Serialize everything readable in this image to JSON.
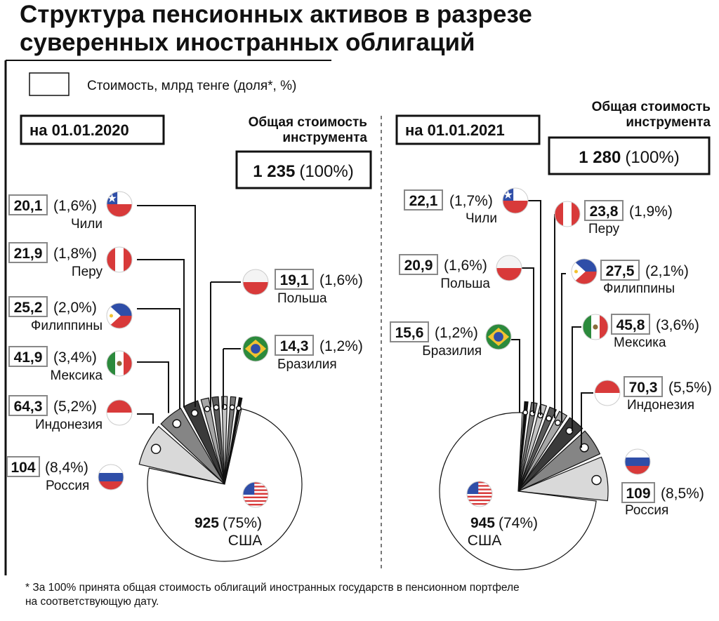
{
  "title_line1": "Структура пенсионных активов в разрезе",
  "title_line2": "суверенных иностранных облигаций",
  "legend": "Стоимость, млрд тенге (доля*, %)",
  "total_label_line1": "Общая стоимость",
  "total_label_line2": "инструмента",
  "footnote_line1": "* За 100% принята общая стоимость облигаций иностранных государств в пенсионном портфеле",
  "footnote_line2": "на соответствующую дату.",
  "colors": {
    "usa": "#ffffff",
    "russia": "#d9d9d9",
    "indonesia": "#858585",
    "mexico": "#3a3a3a",
    "philippines": "#a6a6a6",
    "peru": "#5a5a5a",
    "chile": "#c4c4c4",
    "poland": "#7a7a7a",
    "brazil": "#111111",
    "flag_red": "#d83a3a",
    "flag_blue": "#2f4ea8",
    "flag_green": "#2c8a3c",
    "flag_yellow": "#f2c230"
  },
  "chart_data": [
    {
      "type": "pie",
      "date": "на 01.01.2020",
      "total_value": "1 235",
      "total_share": "(100%)",
      "slices": [
        {
          "key": "usa",
          "name": "США",
          "value": 925,
          "value_label": "925",
          "share": "(75%)",
          "flag": "us-flag-icon"
        },
        {
          "key": "russia",
          "name": "Россия",
          "value": 104,
          "value_label": "104",
          "share": "(8,4%)",
          "flag": "russia-flag-icon"
        },
        {
          "key": "indonesia",
          "name": "Индонезия",
          "value": 64.3,
          "value_label": "64,3",
          "share": "(5,2%)",
          "flag": "indonesia-flag-icon"
        },
        {
          "key": "mexico",
          "name": "Мексика",
          "value": 41.9,
          "value_label": "41,9",
          "share": "(3,4%)",
          "flag": "mexico-flag-icon"
        },
        {
          "key": "philippines",
          "name": "Филиппины",
          "value": 25.2,
          "value_label": "25,2",
          "share": "(2,0%)",
          "flag": "philippines-flag-icon"
        },
        {
          "key": "peru",
          "name": "Перу",
          "value": 21.9,
          "value_label": "21,9",
          "share": "(1,8%)",
          "flag": "peru-flag-icon"
        },
        {
          "key": "chile",
          "name": "Чили",
          "value": 20.1,
          "value_label": "20,1",
          "share": "(1,6%)",
          "flag": "chile-flag-icon"
        },
        {
          "key": "poland",
          "name": "Польша",
          "value": 19.1,
          "value_label": "19,1",
          "share": "(1,6%)",
          "flag": "poland-flag-icon"
        },
        {
          "key": "brazil",
          "name": "Бразилия",
          "value": 14.3,
          "value_label": "14,3",
          "share": "(1,2%)",
          "flag": "brazil-flag-icon"
        }
      ]
    },
    {
      "type": "pie",
      "date": "на 01.01.2021",
      "total_value": "1 280",
      "total_share": "(100%)",
      "slices": [
        {
          "key": "usa",
          "name": "США",
          "value": 945,
          "value_label": "945",
          "share": "(74%)",
          "flag": "us-flag-icon"
        },
        {
          "key": "russia",
          "name": "Россия",
          "value": 109,
          "value_label": "109",
          "share": "(8,5%)",
          "flag": "russia-flag-icon"
        },
        {
          "key": "indonesia",
          "name": "Индонезия",
          "value": 70.3,
          "value_label": "70,3",
          "share": "(5,5%)",
          "flag": "indonesia-flag-icon"
        },
        {
          "key": "mexico",
          "name": "Мексика",
          "value": 45.8,
          "value_label": "45,8",
          "share": "(3,6%)",
          "flag": "mexico-flag-icon"
        },
        {
          "key": "philippines",
          "name": "Филиппины",
          "value": 27.5,
          "value_label": "27,5",
          "share": "(2,1%)",
          "flag": "philippines-flag-icon"
        },
        {
          "key": "peru",
          "name": "Перу",
          "value": 23.8,
          "value_label": "23,8",
          "share": "(1,9%)",
          "flag": "peru-flag-icon"
        },
        {
          "key": "chile",
          "name": "Чили",
          "value": 22.1,
          "value_label": "22,1",
          "share": "(1,7%)",
          "flag": "chile-flag-icon"
        },
        {
          "key": "poland",
          "name": "Польша",
          "value": 20.9,
          "value_label": "20,9",
          "share": "(1,6%)",
          "flag": "poland-flag-icon"
        },
        {
          "key": "brazil",
          "name": "Бразилия",
          "value": 15.6,
          "value_label": "15,6",
          "share": "(1,2%)",
          "flag": "brazil-flag-icon"
        }
      ]
    }
  ]
}
